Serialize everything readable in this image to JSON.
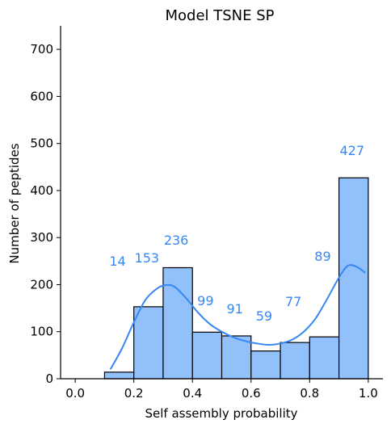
{
  "chart_data": {
    "type": "bar",
    "title": "Model TSNE SP",
    "xlabel": "Self assembly probability",
    "ylabel": "Number of peptides",
    "xlim": [
      -0.05,
      1.05
    ],
    "ylim": [
      0,
      750
    ],
    "x_ticks": [
      "0.0",
      "0.2",
      "0.4",
      "0.6",
      "0.8",
      "1.0"
    ],
    "y_ticks": [
      "0",
      "100",
      "200",
      "300",
      "400",
      "500",
      "600",
      "700"
    ],
    "bins": [
      {
        "start": 0.1,
        "end": 0.2,
        "value": 14
      },
      {
        "start": 0.2,
        "end": 0.3,
        "value": 153
      },
      {
        "start": 0.3,
        "end": 0.4,
        "value": 236
      },
      {
        "start": 0.4,
        "end": 0.5,
        "value": 99
      },
      {
        "start": 0.5,
        "end": 0.6,
        "value": 91
      },
      {
        "start": 0.6,
        "end": 0.7,
        "value": 59
      },
      {
        "start": 0.7,
        "end": 0.8,
        "value": 77
      },
      {
        "start": 0.8,
        "end": 0.9,
        "value": 89
      },
      {
        "start": 0.9,
        "end": 1.0,
        "value": 427
      }
    ],
    "bar_labels": [
      "14",
      "153",
      "236",
      "99",
      "91",
      "59",
      "77",
      "89",
      "427"
    ],
    "kde": {
      "x": [
        0.12,
        0.16,
        0.2,
        0.24,
        0.28,
        0.31,
        0.34,
        0.38,
        0.42,
        0.46,
        0.5,
        0.54,
        0.58,
        0.62,
        0.66,
        0.7,
        0.74,
        0.78,
        0.82,
        0.86,
        0.9,
        0.93,
        0.96,
        0.99
      ],
      "y": [
        20,
        65,
        120,
        168,
        192,
        199,
        195,
        170,
        140,
        116,
        100,
        88,
        80,
        75,
        72,
        75,
        83,
        100,
        128,
        170,
        215,
        240,
        238,
        225
      ]
    },
    "grid": false,
    "colors": {
      "bar_fill": "#92c0fb",
      "bar_edge": "#000000",
      "kde_line": "#3587f2",
      "label_text": "#3587f2"
    }
  }
}
